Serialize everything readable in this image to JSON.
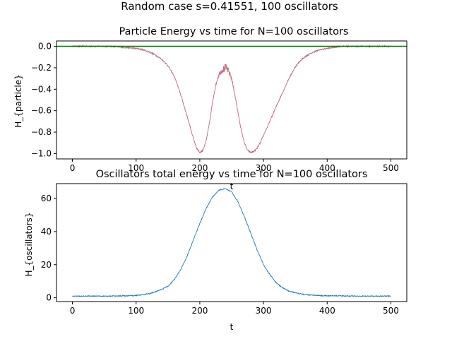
{
  "figure": {
    "suptitle": "Random case s=0.41551, 100 oscillators"
  },
  "chart_data": [
    {
      "type": "line",
      "title": "Particle Energy vs time for N=100 oscillators",
      "xlabel": "t",
      "ylabel": "H_{particle}",
      "xlim": [
        -25,
        525
      ],
      "ylim": [
        -1.05,
        0.05
      ],
      "xticks": [
        0,
        100,
        200,
        300,
        400,
        500
      ],
      "yticks": [
        0.0,
        -0.2,
        -0.4,
        -0.6,
        -0.8,
        -1.0
      ],
      "ytick_labels": [
        "0.0",
        "−0.2",
        "−0.4",
        "−0.6",
        "−0.8",
        "−1.0"
      ],
      "grid": false,
      "series": [
        {
          "color": "#c06478",
          "noisy": true,
          "x": [
            0,
            20,
            40,
            60,
            80,
            100,
            110,
            120,
            130,
            140,
            150,
            160,
            170,
            180,
            190,
            195,
            200,
            205,
            210,
            215,
            220,
            225,
            230,
            235,
            240,
            245,
            250,
            255,
            260,
            265,
            270,
            275,
            280,
            285,
            290,
            295,
            300,
            310,
            320,
            330,
            340,
            350,
            360,
            370,
            380,
            390,
            400,
            410,
            420,
            440,
            460,
            480,
            500
          ],
          "y": [
            0.0,
            0.0,
            0.0,
            0.0,
            -0.01,
            -0.02,
            -0.03,
            -0.05,
            -0.08,
            -0.12,
            -0.18,
            -0.28,
            -0.45,
            -0.65,
            -0.86,
            -0.95,
            -0.99,
            -0.97,
            -0.88,
            -0.72,
            -0.52,
            -0.36,
            -0.26,
            -0.22,
            -0.2,
            -0.23,
            -0.3,
            -0.45,
            -0.62,
            -0.78,
            -0.9,
            -0.97,
            -0.99,
            -0.98,
            -0.95,
            -0.9,
            -0.83,
            -0.7,
            -0.56,
            -0.43,
            -0.3,
            -0.19,
            -0.12,
            -0.08,
            -0.05,
            -0.03,
            -0.02,
            -0.01,
            0.0,
            0.0,
            0.0,
            0.0,
            0.0
          ]
        },
        {
          "color": "#008000",
          "noisy": false,
          "x": [
            -25,
            525
          ],
          "y": [
            0.0,
            0.0
          ]
        }
      ]
    },
    {
      "type": "line",
      "title": "Oscillators total energy vs time for N=100 oscillators",
      "xlabel": "t",
      "ylabel": "H_{oscillators}",
      "xlim": [
        -25,
        525
      ],
      "ylim": [
        -2.3,
        69
      ],
      "xticks": [
        0,
        100,
        200,
        300,
        400,
        500
      ],
      "yticks": [
        0,
        20,
        40,
        60
      ],
      "ytick_labels": [
        "0",
        "20",
        "40",
        "60"
      ],
      "grid": false,
      "series": [
        {
          "color": "#1f77b4",
          "noisy": true,
          "x": [
            0,
            25,
            50,
            75,
            100,
            110,
            120,
            130,
            140,
            150,
            160,
            170,
            180,
            190,
            200,
            210,
            220,
            230,
            240,
            250,
            260,
            270,
            280,
            290,
            300,
            310,
            320,
            330,
            340,
            350,
            360,
            370,
            380,
            390,
            400,
            425,
            450,
            475,
            500
          ],
          "y": [
            1,
            1,
            1,
            1.1,
            1.4,
            1.8,
            2.5,
            3.5,
            5,
            7,
            11,
            17,
            25,
            35,
            45,
            54,
            61,
            65,
            66,
            64,
            58,
            49,
            39,
            29,
            20,
            14,
            9,
            6,
            4,
            3,
            2.2,
            1.8,
            1.5,
            1.3,
            1.2,
            1.1,
            1,
            1,
            1
          ]
        }
      ]
    }
  ]
}
